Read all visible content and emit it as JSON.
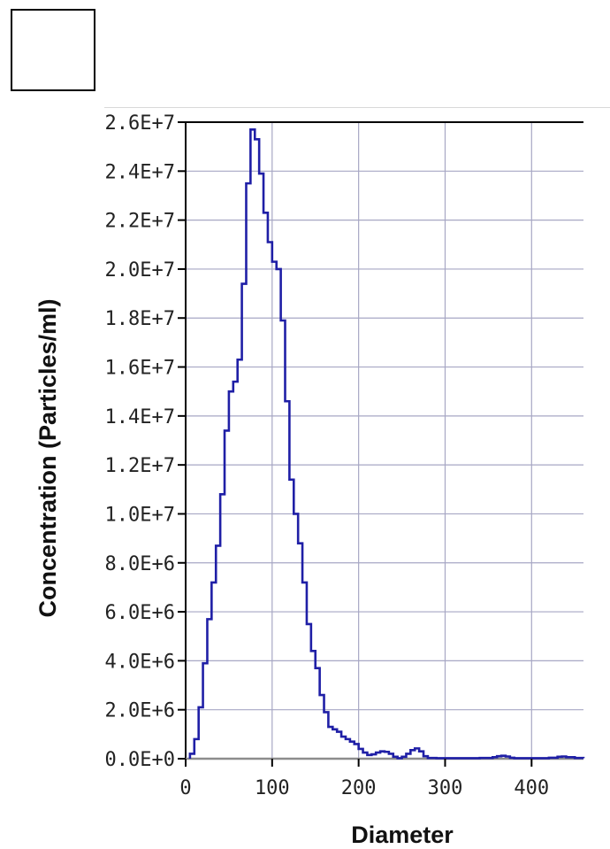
{
  "chart_data": {
    "type": "line",
    "step": true,
    "title": "",
    "xlabel": "Diameter",
    "ylabel": "Concentration  (Particles/ml)",
    "xlim": [
      0,
      460
    ],
    "ylim": [
      0,
      26000000
    ],
    "grid": true,
    "colors": {
      "series": "#1f1fa6",
      "grid": "#a7a7c4",
      "axis": "#000000",
      "baseline": "#8c8c8c"
    },
    "x_ticks": [
      {
        "value": 0,
        "label": "0"
      },
      {
        "value": 100,
        "label": "100"
      },
      {
        "value": 200,
        "label": "200"
      },
      {
        "value": 300,
        "label": "300"
      },
      {
        "value": 400,
        "label": "400"
      }
    ],
    "y_ticks": [
      {
        "value": 0,
        "label": "0.0E+0"
      },
      {
        "value": 2000000,
        "label": "2.0E+6"
      },
      {
        "value": 4000000,
        "label": "4.0E+6"
      },
      {
        "value": 6000000,
        "label": "6.0E+6"
      },
      {
        "value": 8000000,
        "label": "8.0E+6"
      },
      {
        "value": 10000000,
        "label": "1.0E+7"
      },
      {
        "value": 12000000,
        "label": "1.2E+7"
      },
      {
        "value": 14000000,
        "label": "1.4E+7"
      },
      {
        "value": 16000000,
        "label": "1.6E+7"
      },
      {
        "value": 18000000,
        "label": "1.8E+7"
      },
      {
        "value": 20000000,
        "label": "2.0E+7"
      },
      {
        "value": 22000000,
        "label": "2.2E+7"
      },
      {
        "value": 24000000,
        "label": "2.4E+7"
      },
      {
        "value": 26000000,
        "label": "2.6E+7"
      }
    ],
    "series": [
      {
        "x": [
          5,
          10,
          15,
          20,
          25,
          30,
          35,
          40,
          45,
          50,
          55,
          60,
          65,
          70,
          75,
          80,
          85,
          90,
          95,
          100,
          105,
          110,
          115,
          120,
          125,
          130,
          135,
          140,
          145,
          150,
          155,
          160,
          165,
          170,
          175,
          180,
          185,
          190,
          195,
          200,
          205,
          210,
          215,
          220,
          225,
          230,
          235,
          240,
          245,
          250,
          255,
          260,
          265,
          270,
          275,
          280,
          290,
          300,
          320,
          340,
          355,
          360,
          365,
          370,
          375,
          380,
          400,
          420,
          430,
          435,
          440,
          450,
          460
        ],
        "y": [
          200000,
          800000,
          2100000,
          3900000,
          5700000,
          7200000,
          8700000,
          10800000,
          13400000,
          15000000,
          15400000,
          16300000,
          19400000,
          23500000,
          25700000,
          25300000,
          23900000,
          22300000,
          21100000,
          20300000,
          20000000,
          17900000,
          14600000,
          11400000,
          10000000,
          8800000,
          7200000,
          5500000,
          4400000,
          3700000,
          2600000,
          1900000,
          1300000,
          1200000,
          1100000,
          900000,
          800000,
          700000,
          600000,
          400000,
          250000,
          150000,
          180000,
          250000,
          300000,
          280000,
          200000,
          80000,
          20000,
          80000,
          200000,
          350000,
          420000,
          300000,
          100000,
          30000,
          20000,
          20000,
          20000,
          30000,
          60000,
          100000,
          120000,
          90000,
          40000,
          20000,
          20000,
          40000,
          80000,
          90000,
          60000,
          30000,
          20000
        ]
      }
    ]
  }
}
